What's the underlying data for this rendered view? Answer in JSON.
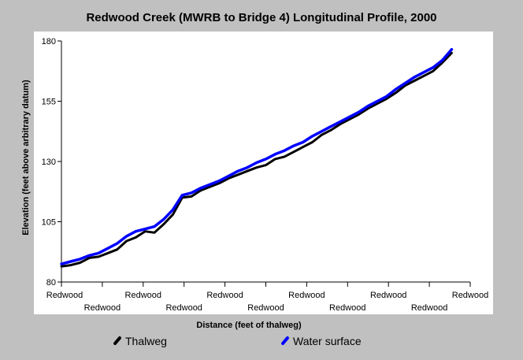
{
  "title": "Redwood Creek (MWRB to Bridge 4) Longitudinal Profile, 2000",
  "legend": [
    {
      "label": "Thalweg",
      "color": "#000000",
      "icon": "black-line-swatch"
    },
    {
      "label": "Water surface",
      "color": "#0000ff",
      "icon": "blue-line-swatch"
    }
  ],
  "chart_data": {
    "type": "line",
    "title": "Redwood Creek (MWRB to Bridge 4) Longitudinal Profile, 2000",
    "xlabel": "Distance (feet of thalweg)",
    "ylabel": "Elevation (feet above arbitrary datum)",
    "xlim": [
      0,
      11000
    ],
    "ylim": [
      80,
      180
    ],
    "yticks": [
      80,
      105,
      130,
      155,
      180
    ],
    "xtick_labels": [
      "Redwood",
      "Redwood",
      "Redwood",
      "Redwood",
      "Redwood",
      "Redwood",
      "Redwood",
      "Redwood",
      "Redwood",
      "Redwood",
      "Redwood"
    ],
    "grid": false,
    "legend_position": "bottom",
    "series": [
      {
        "name": "Water surface",
        "color": "#0000ff",
        "x": [
          0,
          250,
          500,
          750,
          1000,
          1250,
          1500,
          1750,
          2000,
          2250,
          2500,
          2750,
          3000,
          3250,
          3500,
          3750,
          4000,
          4250,
          4500,
          4750,
          5000,
          5250,
          5500,
          5750,
          6000,
          6250,
          6500,
          6750,
          7000,
          7250,
          7500,
          7750,
          8000,
          8250,
          8500,
          8750,
          9000,
          9250,
          9500,
          9750,
          10000,
          10250,
          10500
        ],
        "values": [
          87.5,
          88.5,
          89.5,
          91,
          92,
          94,
          96,
          99,
          101,
          102,
          103,
          106,
          110,
          116,
          117,
          119,
          120.5,
          122,
          124,
          126,
          127.5,
          129.5,
          131,
          133,
          134.5,
          136.5,
          138,
          140.5,
          142.5,
          144.5,
          146.5,
          148.5,
          150.5,
          153,
          155,
          157,
          160,
          162.5,
          165,
          167,
          169,
          172,
          176.5
        ]
      },
      {
        "name": "Thalweg",
        "color": "#000000",
        "x": [
          0,
          250,
          500,
          750,
          1000,
          1250,
          1500,
          1750,
          2000,
          2250,
          2500,
          2750,
          3000,
          3250,
          3500,
          3750,
          4000,
          4250,
          4500,
          4750,
          5000,
          5250,
          5500,
          5750,
          6000,
          6250,
          6500,
          6750,
          7000,
          7250,
          7500,
          7750,
          8000,
          8250,
          8500,
          8750,
          9000,
          9250,
          9500,
          9750,
          10000,
          10250,
          10500
        ],
        "values": [
          86.5,
          87,
          88,
          90,
          90.5,
          92,
          93.5,
          97,
          98.5,
          101,
          100.5,
          104,
          108,
          115,
          115.5,
          118,
          119.5,
          121,
          123,
          124.5,
          126,
          127.5,
          128.5,
          131,
          132,
          134,
          136,
          138,
          141,
          143,
          145.5,
          147.5,
          149.5,
          152,
          154,
          156,
          158.5,
          161.5,
          163.5,
          165.5,
          167.5,
          171,
          175
        ]
      }
    ]
  }
}
